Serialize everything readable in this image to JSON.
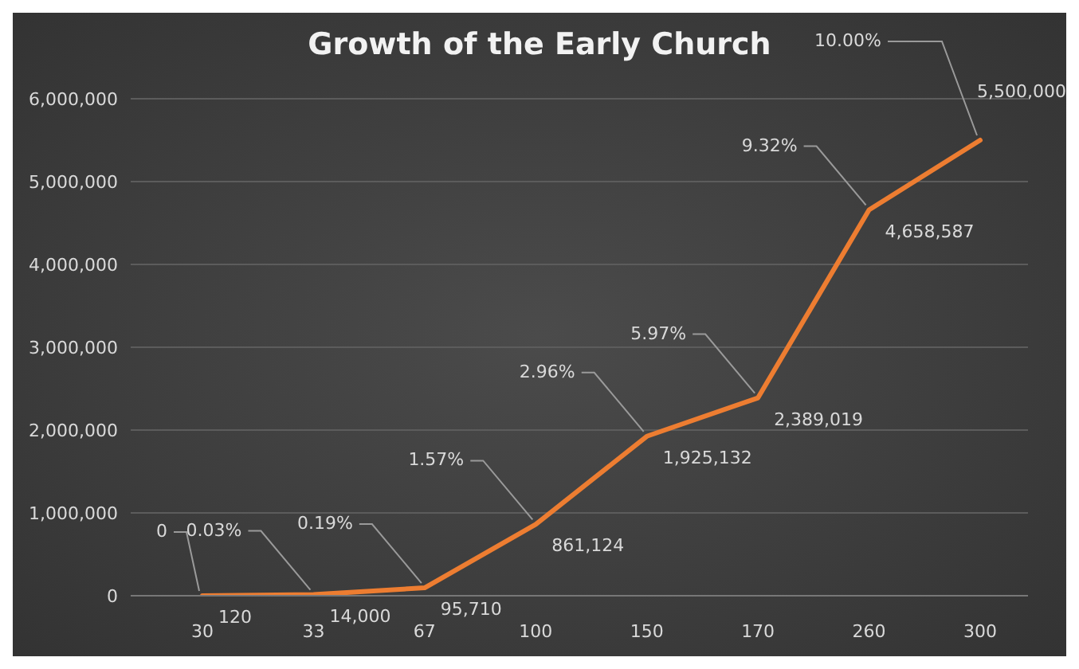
{
  "chart_data": {
    "type": "line",
    "title": "Growth of the Early Church",
    "categories": [
      "30",
      "33",
      "67",
      "100",
      "150",
      "170",
      "260",
      "300"
    ],
    "series": [
      {
        "color": "#ed7d31",
        "values": [
          120,
          14000,
          95710,
          861124,
          1925132,
          2389019,
          4658587,
          5500000
        ],
        "value_labels": [
          "120",
          "14,000",
          "95,710",
          "861,124",
          "1,925,132",
          "2,389,019",
          "4,658,587",
          "5,500,000"
        ]
      }
    ],
    "ylim": [
      0,
      6000000
    ],
    "yticks": [
      {
        "value": 0,
        "label": "0"
      },
      {
        "value": 1000000,
        "label": "1,000,000"
      },
      {
        "value": 2000000,
        "label": "2,000,000"
      },
      {
        "value": 3000000,
        "label": "3,000,000"
      },
      {
        "value": 4000000,
        "label": "4,000,000"
      },
      {
        "value": 5000000,
        "label": "5,000,000"
      },
      {
        "value": 6000000,
        "label": "6,000,000"
      }
    ],
    "grid": "y",
    "legend": false,
    "marker": "none",
    "line_style": "solid",
    "annotations": [
      {
        "text": "0",
        "x": "30",
        "y": 120
      },
      {
        "text": "0.03%",
        "x": "33",
        "y": 14000
      },
      {
        "text": "0.19%",
        "x": "67",
        "y": 95710
      },
      {
        "text": "1.57%",
        "x": "100",
        "y": 861124
      },
      {
        "text": "2.96%",
        "x": "150",
        "y": 1925132
      },
      {
        "text": "5.97%",
        "x": "170",
        "y": 2389019
      },
      {
        "text": "9.32%",
        "x": "260",
        "y": 4658587
      },
      {
        "text": "10.00%",
        "x": "300",
        "y": 5500000
      }
    ]
  }
}
